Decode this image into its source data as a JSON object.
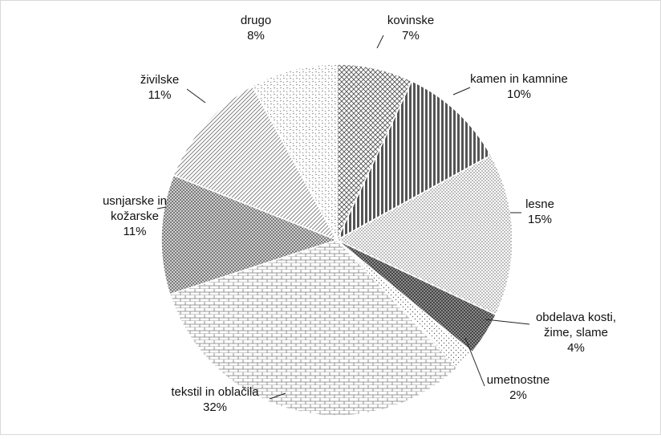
{
  "chart_data": {
    "type": "pie",
    "title": "",
    "slices": [
      {
        "label_lines": [
          "kovinske"
        ],
        "pct_label": "7%",
        "value": 7,
        "pattern": "cross-hatch"
      },
      {
        "label_lines": [
          "kamen in kamnine"
        ],
        "pct_label": "10%",
        "value": 10,
        "pattern": "dark-vertical-stripes"
      },
      {
        "label_lines": [
          "lesne"
        ],
        "pct_label": "15%",
        "value": 15,
        "pattern": "fine-dots"
      },
      {
        "label_lines": [
          "obdelava kosti,",
          "žime, slame"
        ],
        "pct_label": "4%",
        "value": 4,
        "pattern": "dark-checker"
      },
      {
        "label_lines": [
          "umetnostne"
        ],
        "pct_label": "2%",
        "value": 2,
        "pattern": "sparse-dots"
      },
      {
        "label_lines": [
          "tekstil in oblačila"
        ],
        "pct_label": "32%",
        "value": 32,
        "pattern": "brick"
      },
      {
        "label_lines": [
          "usnjarske in",
          "kožarske"
        ],
        "pct_label": "11%",
        "value": 11,
        "pattern": "medium-checker"
      },
      {
        "label_lines": [
          "živilske"
        ],
        "pct_label": "11%",
        "value": 11,
        "pattern": "diagonal-hatch"
      },
      {
        "label_lines": [
          "drugo"
        ],
        "pct_label": "8%",
        "value": 8,
        "pattern": "wave-dashes"
      }
    ]
  }
}
